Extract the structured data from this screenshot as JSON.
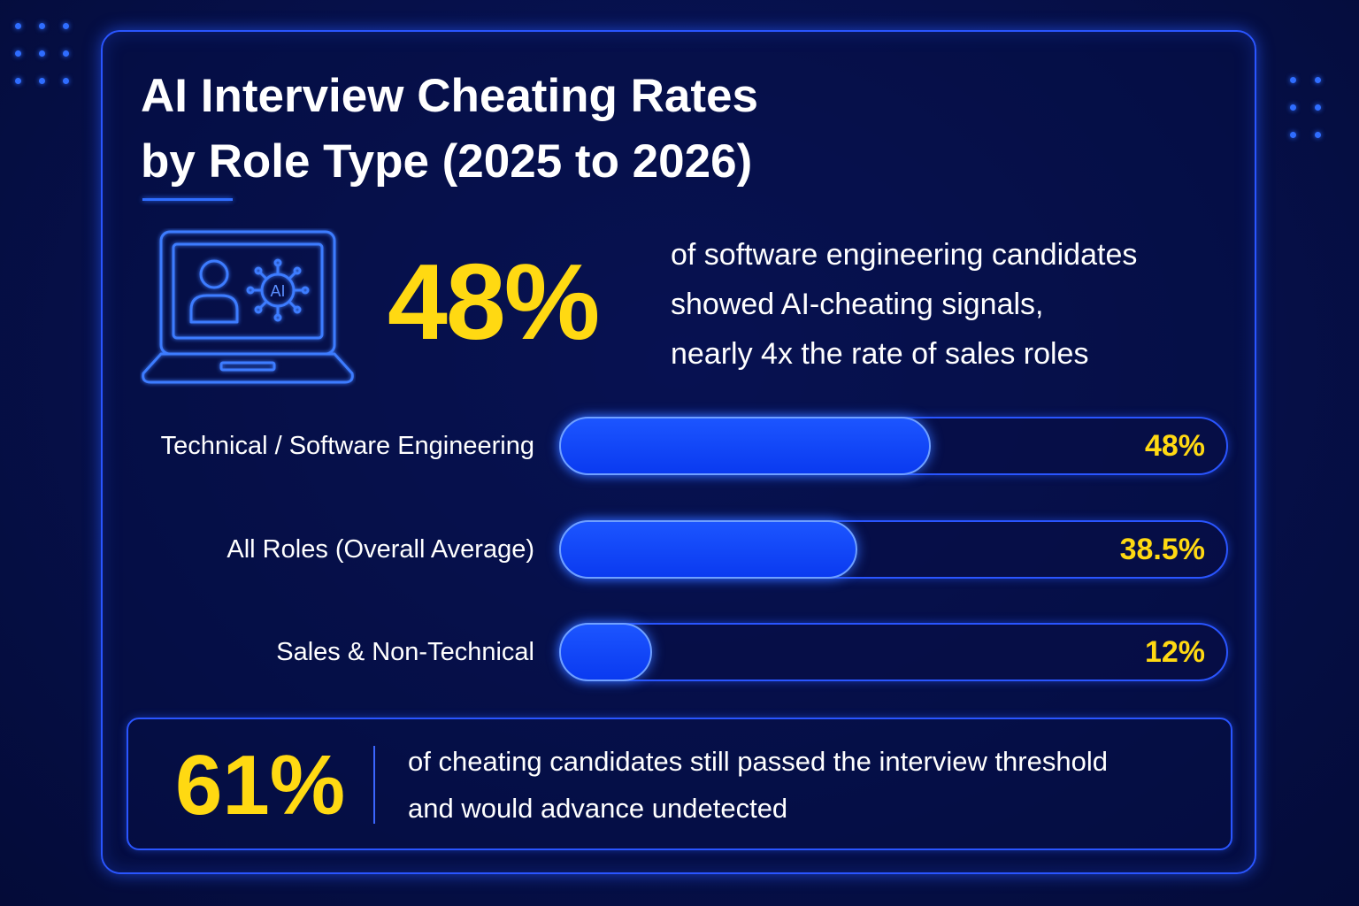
{
  "title": "AI Interview Cheating Rates\nby Role Type (2025 to 2026)",
  "icon": {
    "name": "laptop-ai-icon",
    "badge_text": "AI"
  },
  "headline": {
    "value": "48%",
    "lines": [
      "of software engineering candidates",
      "showed AI-cheating signals,",
      "nearly 4x the rate of sales roles"
    ]
  },
  "chart_data": {
    "type": "bar",
    "orientation": "horizontal",
    "categories": [
      "Technical / Software Engineering",
      "All Roles (Overall Average)",
      "Sales & Non-Technical"
    ],
    "values": [
      48,
      38.5,
      12
    ],
    "value_labels": [
      "48%",
      "38.5%",
      "12%"
    ],
    "unit": "%",
    "xlim": [
      0,
      100
    ],
    "grid": false,
    "legend": "none"
  },
  "callout": {
    "value": "61%",
    "lines": [
      "of cheating candidates still passed the interview threshold",
      "and would advance undetected"
    ]
  },
  "colors": {
    "background": "#06104a",
    "accent": "#2a55ff",
    "bar_fill": "#1c55ff",
    "highlight": "#ffd912",
    "text": "#ffffff"
  }
}
